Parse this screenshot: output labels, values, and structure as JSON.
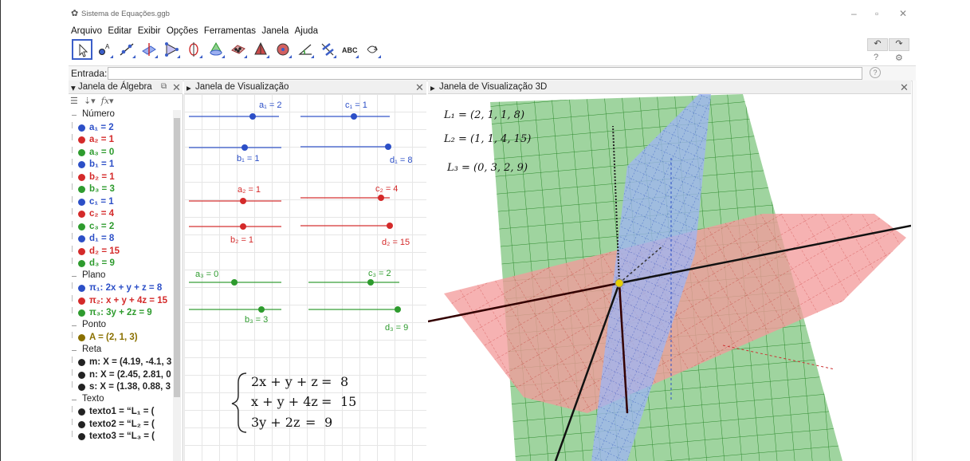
{
  "window": {
    "title": "Sistema de Equações.ggb",
    "controls": [
      "–",
      "▫",
      "✕"
    ]
  },
  "menu": [
    "Arquivo",
    "Editar",
    "Exibir",
    "Opções",
    "Ferramentas",
    "Janela",
    "Ajuda"
  ],
  "toolbar": {
    "tools": [
      "move-tool",
      "point-tool",
      "line-tool",
      "perpendicular-tool",
      "polygon-tool",
      "circle-axis-tool",
      "intersect-surfaces-tool",
      "plane-tool",
      "pyramid-tool",
      "sphere-tool",
      "angle-tool",
      "reflect-tool",
      "text-tool",
      "rotate-view-tool"
    ],
    "text_tool_label": "ABC",
    "undo": "↶",
    "redo": "↷",
    "help": "?",
    "settings": "⚙"
  },
  "input": {
    "label": "Entrada:",
    "value": "",
    "help": "?"
  },
  "panels": {
    "algebra_title": "Janela de Álgebra",
    "view2d_title": "Janela de Visualização",
    "view3d_title": "Janela de Visualização 3D"
  },
  "algebra": {
    "groups": [
      {
        "name": "Número",
        "items": [
          {
            "text": "a₁ = 2",
            "color": "#2c4fc7"
          },
          {
            "text": "a₂ = 1",
            "color": "#d42a2a"
          },
          {
            "text": "a₃ = 0",
            "color": "#2e9b2e"
          },
          {
            "text": "b₁ = 1",
            "color": "#2c4fc7"
          },
          {
            "text": "b₂ = 1",
            "color": "#d42a2a"
          },
          {
            "text": "b₃ = 3",
            "color": "#2e9b2e"
          },
          {
            "text": "c₁ = 1",
            "color": "#2c4fc7"
          },
          {
            "text": "c₂ = 4",
            "color": "#d42a2a"
          },
          {
            "text": "c₃ = 2",
            "color": "#2e9b2e"
          },
          {
            "text": "d₁ = 8",
            "color": "#2c4fc7"
          },
          {
            "text": "d₂ = 15",
            "color": "#d42a2a"
          },
          {
            "text": "d₃ = 9",
            "color": "#2e9b2e"
          }
        ]
      },
      {
        "name": "Plano",
        "items": [
          {
            "text": "π₁: 2x + y + z = 8",
            "color": "#2c4fc7"
          },
          {
            "text": "π₂: x + y + 4z = 15",
            "color": "#d42a2a"
          },
          {
            "text": "π₃: 3y + 2z = 9",
            "color": "#2e9b2e"
          }
        ]
      },
      {
        "name": "Ponto",
        "items": [
          {
            "text": "A = (2, 1, 3)",
            "color": "#8a7000"
          }
        ]
      },
      {
        "name": "Reta",
        "items": [
          {
            "text": "m: X = (4.19, -4.1, 3",
            "color": "#222222"
          },
          {
            "text": "n: X = (2.45, 2.81, 0",
            "color": "#222222"
          },
          {
            "text": "s: X = (1.38, 0.88, 3",
            "color": "#222222"
          }
        ]
      },
      {
        "name": "Texto",
        "items": [
          {
            "text": "texto1 = “L₁ = (",
            "color": "#222222"
          },
          {
            "text": "texto2 = “L₂ = (",
            "color": "#222222"
          },
          {
            "text": "texto3 = “L₃ = (",
            "color": "#222222"
          }
        ]
      }
    ]
  },
  "sliders": {
    "a1": "a₁ = 2",
    "b1": "b₁ = 1",
    "c1": "c₁ = 1",
    "d1": "d₁ = 8",
    "a2": "a₂ = 1",
    "b2": "b₂ = 1",
    "c2": "c₂ = 4",
    "d2": "d₂ = 15",
    "a3": "a₃ = 0",
    "b3": "b₃ = 3",
    "c3": "c₃ = 2",
    "d3": "d₃ = 9"
  },
  "system": {
    "eq1_lhs": "2x + y + z",
    "eq1_rhs": "8",
    "eq2_lhs": "x + y + 4z",
    "eq2_rhs": "15",
    "eq3_lhs": "3y + 2z",
    "eq3_rhs": "9",
    "eq_sign": "="
  },
  "view3d_labels": {
    "L1": "L₁ = (2, 1, 1, 8)",
    "L2": "L₂ = (1, 1, 4, 15)",
    "L3": "L₃ = (0, 3, 2, 9)"
  },
  "colors": {
    "blue": "#2c4fc7",
    "red": "#d42a2a",
    "green": "#2e9b2e",
    "point": "#e6d000"
  }
}
